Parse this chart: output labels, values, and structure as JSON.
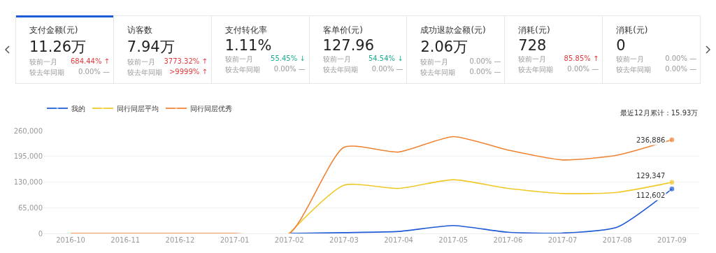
{
  "chart_data": [
    {
      "type": "other",
      "annotations": [
        "支付金额(元)",
        "11.26万",
        "较前一月",
        "684.44% ↑",
        "较去年同期",
        "0.00% —",
        "访客数",
        "7.94万",
        "较前一月",
        "3773.32% ↑",
        "较去年同期",
        ">9999% ↑",
        "支付转化率",
        "1.11%",
        "较前一月",
        "55.45% ↓",
        "较去年同期",
        "0.00% —",
        "客单价(元)",
        "127.96",
        "较前一月",
        "54.54% ↓",
        "较去年同期",
        "0.00% —",
        "成功退款金额(元)",
        "2.06万",
        "较前一月",
        "0.00% —",
        "较去年同期",
        "0.00% —",
        "消耗(元)",
        "728",
        "较前一月",
        "85.85% ↑",
        "较去年同期",
        "0.00% —",
        "消耗(元)",
        "0",
        "较前一月",
        "0.00% —",
        "较去年同期",
        "0.00% —"
      ],
      "colors": [
        "#e4393c",
        "#999999",
        "#e4393c",
        "#e4393c",
        "#1aad8f",
        "#999999",
        "#1aad8f",
        "#999999",
        "#999999",
        "#999999",
        "#e4393c",
        "#999999",
        "#999999",
        "#999999"
      ]
    },
    {
      "type": "line",
      "categories": [
        "2016-10",
        "2016-11",
        "2016-12",
        "2017-01",
        "2017-02",
        "2017-03",
        "2017-04",
        "2017-05",
        "2017-06",
        "2017-07",
        "2017-08",
        "2017-09"
      ],
      "series": [
        {
          "name": "我的",
          "color": "#1d5ad6",
          "values": [
            null,
            null,
            null,
            null,
            0,
            2000,
            5000,
            20000,
            3000,
            1000,
            16000,
            112602
          ],
          "value_labels": [
            null,
            null,
            null,
            null,
            null,
            null,
            null,
            null,
            null,
            null,
            null,
            "112,602"
          ]
        },
        {
          "name": "同行同层平均",
          "color": "#f0c929",
          "values": [
            null,
            null,
            null,
            null,
            0,
            122000,
            114000,
            136000,
            114000,
            101000,
            104000,
            129347
          ],
          "value_labels": [
            null,
            null,
            null,
            null,
            null,
            null,
            null,
            null,
            null,
            null,
            null,
            "129,347"
          ]
        },
        {
          "name": "同行同层优秀",
          "color": "#f08332",
          "values": [
            0,
            0,
            0,
            0,
            0,
            218000,
            206000,
            245000,
            211000,
            186000,
            198000,
            236886
          ],
          "value_labels": [
            null,
            null,
            null,
            null,
            null,
            null,
            null,
            null,
            null,
            null,
            null,
            "236,886"
          ]
        }
      ],
      "ylim": [
        0,
        260000
      ],
      "yticks": [
        {
          "value": 0,
          "label": "0"
        },
        {
          "value": 65000,
          "label": "65,000"
        },
        {
          "value": 130000,
          "label": "130,000"
        },
        {
          "value": 195000,
          "label": "195,000"
        },
        {
          "value": 260000,
          "label": "260,000"
        }
      ],
      "grid": "y",
      "legend": "top left",
      "marker": "none",
      "line_style": "solid",
      "annotations": [
        "最近12月累计：15.93万"
      ]
    }
  ]
}
